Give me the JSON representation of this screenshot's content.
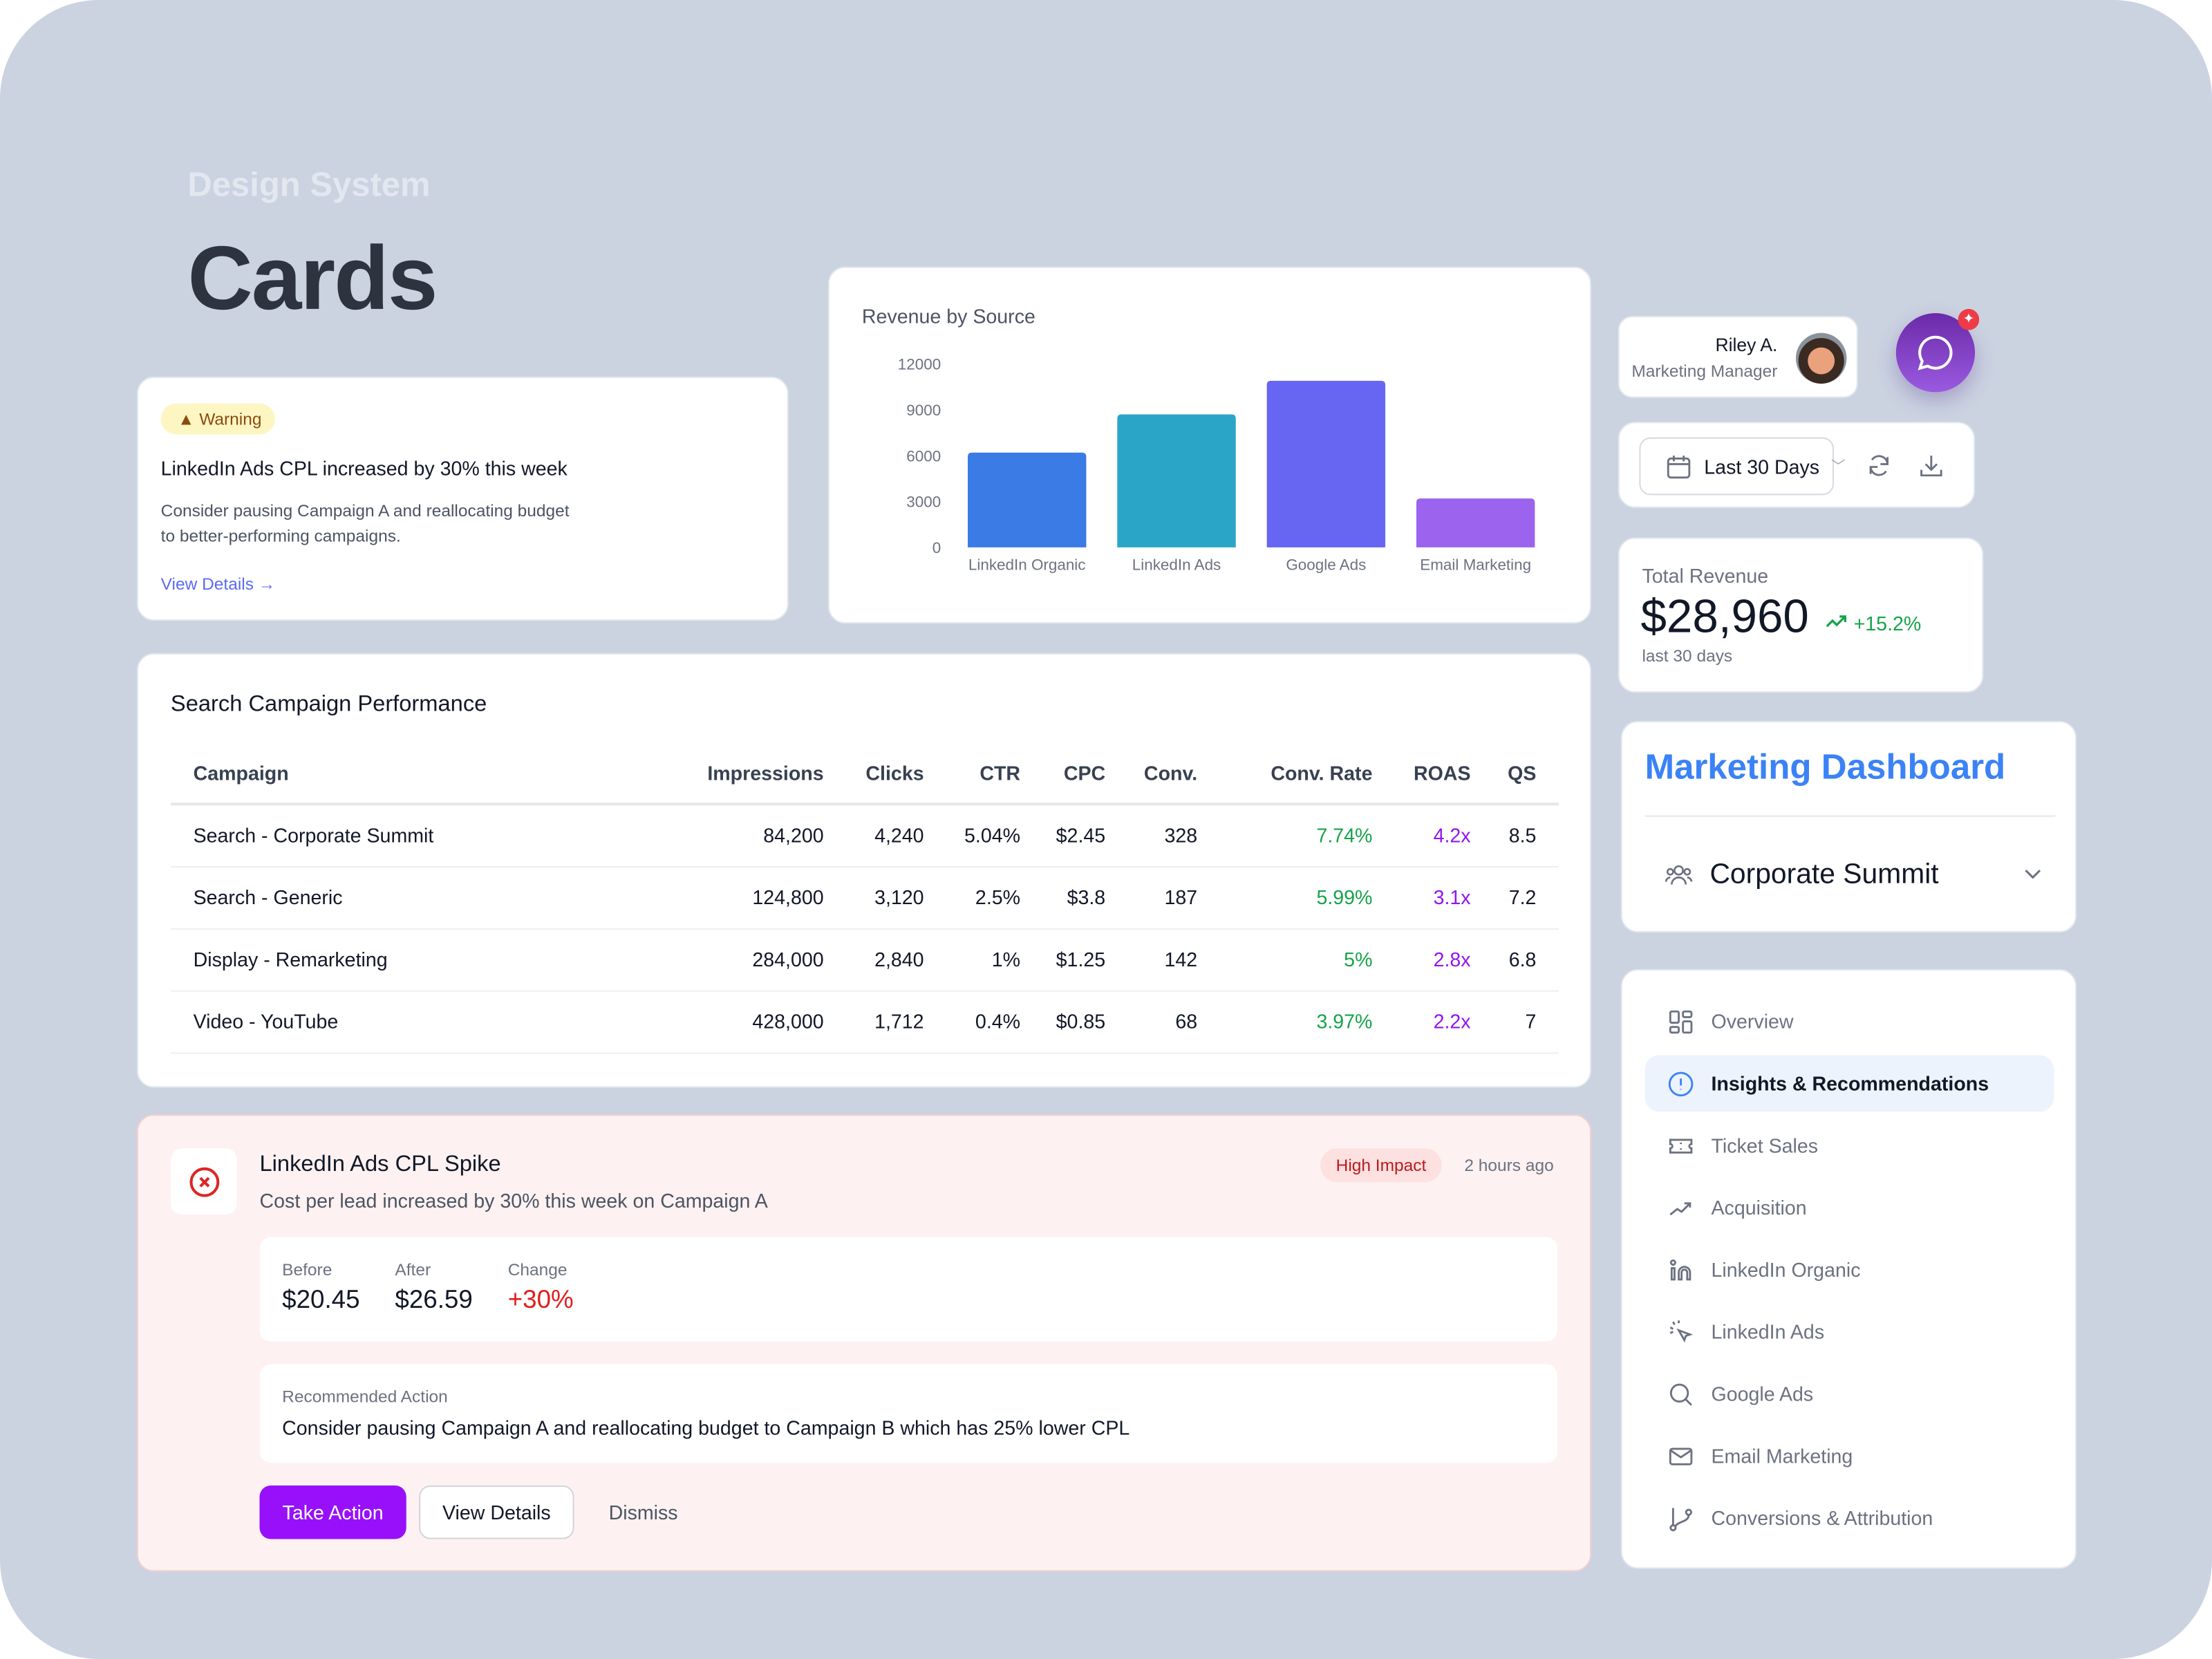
{
  "header": {
    "eyebrow": "Design System",
    "title": "Cards"
  },
  "warning_card": {
    "badge": "Warning",
    "badge_icon": "warning-triangle-icon",
    "title": "LinkedIn Ads CPL increased by 30% this week",
    "body_line1": "Consider pausing Campaign A and reallocating budget",
    "body_line2": "to better-performing campaigns.",
    "link": "View Details →"
  },
  "chart_data": {
    "type": "bar",
    "title": "Revenue by Source",
    "categories": [
      "LinkedIn Organic",
      "LinkedIn Ads",
      "Google Ads",
      "Email Marketing"
    ],
    "values": [
      6200,
      8700,
      10900,
      3200
    ],
    "colors": [
      "#3b7be6",
      "#2aa5c8",
      "#6666f2",
      "#9b63ee"
    ],
    "yticks": [
      "12000",
      "9000",
      "6000",
      "3000",
      "0"
    ],
    "ylim": [
      0,
      12000
    ],
    "grid": false
  },
  "profile": {
    "name": "Riley A.",
    "role": "Marketing Manager"
  },
  "chat_button": {
    "icon": "chat-bubble-icon",
    "badge_icon": "sparkle-icon",
    "color": "#7e3ad6",
    "badge_color": "#ef3b46"
  },
  "date_filter": {
    "label": "Last 30 Days",
    "icon": "calendar-icon"
  },
  "total_revenue": {
    "label": "Total Revenue",
    "value": "$28,960",
    "change": "+15.2%",
    "period": "last 30 days"
  },
  "marketing_dashboard": {
    "title": "Marketing Dashboard",
    "selected_event": "Corporate Summit",
    "accent": "#3b82f6"
  },
  "nav": {
    "items": [
      {
        "label": "Overview",
        "icon": "grid-icon"
      },
      {
        "label": "Insights & Recommendations",
        "icon": "alert-circle-icon",
        "active": true
      },
      {
        "label": "Ticket Sales",
        "icon": "ticket-icon"
      },
      {
        "label": "Acquisition",
        "icon": "trending-up-icon"
      },
      {
        "label": "LinkedIn Organic",
        "icon": "linkedin-icon"
      },
      {
        "label": "LinkedIn Ads",
        "icon": "cursor-click-icon"
      },
      {
        "label": "Google Ads",
        "icon": "search-icon"
      },
      {
        "label": "Email Marketing",
        "icon": "mail-icon"
      },
      {
        "label": "Conversions & Attribution",
        "icon": "git-branch-icon"
      }
    ]
  },
  "table": {
    "title": "Search Campaign Performance",
    "columns": [
      "Campaign",
      "Impressions",
      "Clicks",
      "CTR",
      "CPC",
      "Conv.",
      "Conv. Rate",
      "ROAS",
      "QS"
    ],
    "rows": [
      [
        "Search - Corporate Summit",
        "84,200",
        "4,240",
        "5.04%",
        "$2.45",
        "328",
        "7.74%",
        "4.2x",
        "8.5"
      ],
      [
        "Search - Generic",
        "124,800",
        "3,120",
        "2.5%",
        "$3.8",
        "187",
        "5.99%",
        "3.1x",
        "7.2"
      ],
      [
        "Display - Remarketing",
        "284,000",
        "2,840",
        "1%",
        "$1.25",
        "142",
        "5%",
        "2.8x",
        "6.8"
      ],
      [
        "Video - YouTube",
        "428,000",
        "1,712",
        "0.4%",
        "$0.85",
        "68",
        "3.97%",
        "2.2x",
        "7"
      ]
    ]
  },
  "alert": {
    "title": "LinkedIn Ads CPL Spike",
    "subtitle": "Cost per lead increased by 30% this week on Campaign A",
    "impact": "High Impact",
    "time": "2 hours ago",
    "before_label": "Before",
    "before": "$20.45",
    "after_label": "After",
    "after": "$26.59",
    "change_label": "Change",
    "change": "+30%",
    "rec_label": "Recommended Action",
    "rec_text": "Consider pausing Campaign A and reallocating budget to Campaign B which has 25% lower CPL",
    "take_action": "Take Action",
    "view_details": "View Details",
    "dismiss": "Dismiss"
  }
}
